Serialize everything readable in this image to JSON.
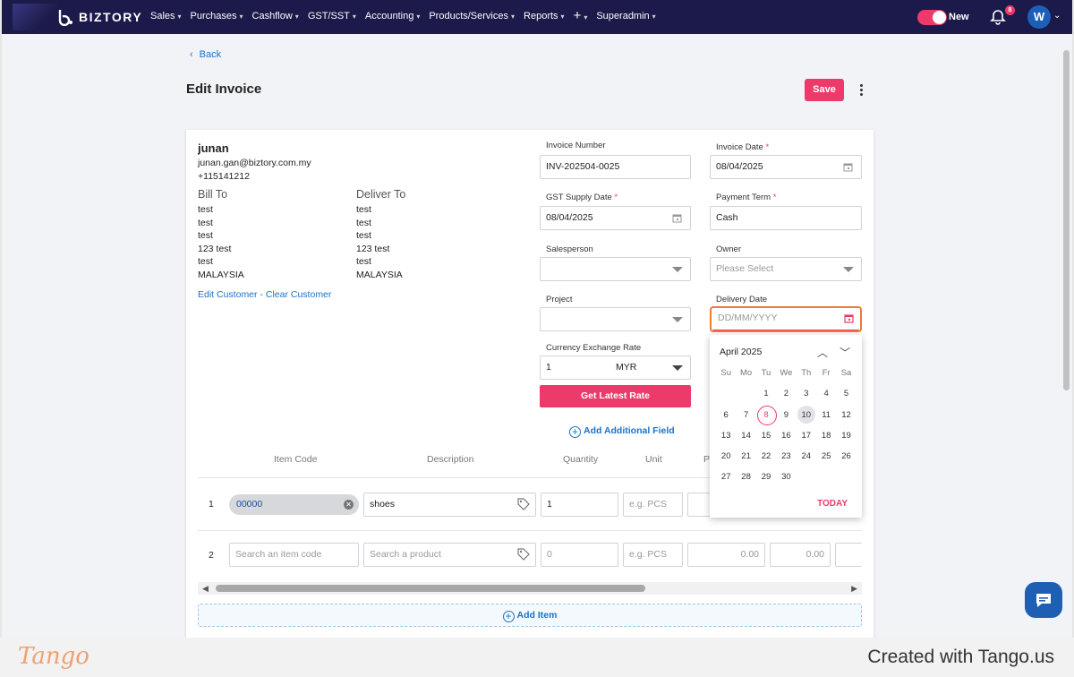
{
  "nav": {
    "brand": "BIZTORY",
    "menu": [
      "Sales",
      "Purchases",
      "Cashflow",
      "GST/SST",
      "Accounting",
      "Products/Services",
      "Reports",
      "+",
      "Superadmin"
    ],
    "toggle_label": "New",
    "notif_count": "8",
    "avatar": "W"
  },
  "page": {
    "back": "Back",
    "title": "Edit Invoice",
    "save": "Save"
  },
  "customer": {
    "name": "junan",
    "email": "junan.gan@biztory.com.my",
    "phone": "+115141212",
    "bill_to_label": "Bill To",
    "deliver_to_label": "Deliver To",
    "bill_to": [
      "test",
      "test",
      "test",
      "123 test",
      "test",
      "MALAYSIA"
    ],
    "deliver_to": [
      "test",
      "test",
      "test",
      "123 test",
      "test",
      "MALAYSIA"
    ],
    "edit_link": "Edit Customer",
    "separator": " - ",
    "clear_link": "Clear Customer"
  },
  "form": {
    "invoice_number_label": "Invoice Number",
    "invoice_number": "INV-202504-0025",
    "invoice_date_label": "Invoice Date",
    "invoice_date": "08/04/2025",
    "gst_date_label": "GST Supply Date",
    "gst_date": "08/04/2025",
    "payment_term_label": "Payment Term",
    "payment_term": "Cash",
    "salesperson_label": "Salesperson",
    "owner_label": "Owner",
    "owner_placeholder": "Please Select",
    "project_label": "Project",
    "delivery_date_label": "Delivery Date",
    "delivery_date_placeholder": "DD/MM/YYYY",
    "currency_label": "Currency Exchange Rate",
    "rate_value": "1",
    "currency": "MYR",
    "rate_button": "Get Latest Rate",
    "add_field": "Add Additional Field",
    "required_mark": "*"
  },
  "table": {
    "headers": [
      "Item Code",
      "Description",
      "Quantity",
      "Unit",
      "P"
    ],
    "rows": [
      {
        "num": "1",
        "code": "00000",
        "desc": "shoes",
        "qty": "1",
        "unit_ph": "e.g. PCS"
      },
      {
        "num": "2",
        "code_ph": "Search an item code",
        "desc_ph": "Search a product",
        "qty_ph": "0",
        "unit_ph": "e.g. PCS",
        "price": "0.00",
        "disc": "0.00"
      }
    ],
    "add_item": "Add Item"
  },
  "datepicker": {
    "month": "April 2025",
    "weekdays": [
      "Su",
      "Mo",
      "Tu",
      "We",
      "Th",
      "Fr",
      "Sa"
    ],
    "start_offset": 2,
    "days": 30,
    "selected": 8,
    "highlighted": 10,
    "today_btn": "TODAY"
  },
  "footer": {
    "logo": "Tango",
    "created": "Created with Tango.us"
  },
  "colors": {
    "accent": "#ee3a6a",
    "nav_bg": "#1b1a4a",
    "link": "#1a73c9",
    "focus": "#ee7a35"
  }
}
